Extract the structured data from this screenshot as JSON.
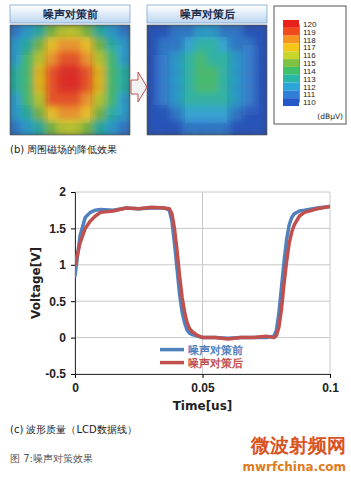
{
  "chart_data": [
    {
      "type": "heatmap",
      "panels": [
        {
          "title": "噪声对策前",
          "cells": [
            [
              111,
              112,
              113,
              115,
              116,
              116,
              115,
              113,
              112,
              111
            ],
            [
              112,
              113,
              115,
              117,
              118,
              118,
              117,
              115,
              113,
              112
            ],
            [
              112,
              114,
              116,
              118,
              119,
              119,
              118,
              116,
              114,
              112
            ],
            [
              113,
              114,
              117,
              119,
              120,
              120,
              119,
              117,
              114,
              113
            ],
            [
              113,
              114,
              117,
              119,
              120,
              120,
              119,
              117,
              114,
              113
            ],
            [
              112,
              114,
              116,
              119,
              119,
              119,
              118,
              116,
              114,
              112
            ],
            [
              112,
              113,
              115,
              117,
              118,
              118,
              117,
              115,
              113,
              112
            ],
            [
              111,
              112,
              113,
              115,
              116,
              116,
              115,
              113,
              112,
              111
            ]
          ]
        },
        {
          "title": "噪声对策后",
          "cells": [
            [
              110,
              110,
              111,
              111,
              112,
              112,
              111,
              111,
              110,
              110
            ],
            [
              110,
              111,
              111,
              112,
              113,
              113,
              112,
              111,
              111,
              110
            ],
            [
              110,
              111,
              112,
              113,
              114,
              113,
              113,
              112,
              111,
              110
            ],
            [
              110,
              111,
              112,
              113,
              114,
              114,
              113,
              112,
              111,
              110
            ],
            [
              110,
              111,
              112,
              113,
              114,
              114,
              113,
              112,
              111,
              110
            ],
            [
              110,
              111,
              112,
              113,
              113,
              113,
              113,
              112,
              111,
              110
            ],
            [
              110,
              110,
              111,
              112,
              112,
              112,
              112,
              111,
              110,
              110
            ],
            [
              110,
              110,
              110,
              111,
              111,
              111,
              111,
              110,
              110,
              110
            ]
          ]
        }
      ],
      "colorbar": {
        "range": [
          110,
          120
        ],
        "ticks": [
          120,
          119,
          118,
          117,
          116,
          115,
          114,
          113,
          112,
          111,
          110
        ],
        "label": "(dBμV)"
      },
      "caption": "(b) 周围磁场的降低效果"
    },
    {
      "type": "line",
      "x": [
        0,
        0.002,
        0.004,
        0.006,
        0.008,
        0.01,
        0.015,
        0.02,
        0.025,
        0.03,
        0.035,
        0.037,
        0.038,
        0.039,
        0.04,
        0.041,
        0.042,
        0.043,
        0.044,
        0.045,
        0.046,
        0.048,
        0.05,
        0.055,
        0.06,
        0.065,
        0.07,
        0.075,
        0.078,
        0.079,
        0.08,
        0.081,
        0.082,
        0.083,
        0.084,
        0.085,
        0.086,
        0.088,
        0.09,
        0.095,
        0.1
      ],
      "series": [
        {
          "name": "噪声对策前",
          "color": "#4f81bd",
          "values": [
            0.85,
            1.4,
            1.65,
            1.72,
            1.75,
            1.76,
            1.75,
            1.78,
            1.77,
            1.78,
            1.78,
            1.75,
            1.6,
            1.3,
            0.95,
            0.6,
            0.35,
            0.2,
            0.1,
            0.06,
            0.04,
            0.02,
            0.0,
            0.0,
            -0.01,
            0.0,
            0.0,
            0.0,
            0.02,
            0.1,
            0.35,
            0.7,
            1.05,
            1.35,
            1.55,
            1.65,
            1.7,
            1.74,
            1.75,
            1.78,
            1.8
          ]
        },
        {
          "name": "噪声对策后",
          "color": "#c0504d",
          "values": [
            1.0,
            1.3,
            1.5,
            1.6,
            1.67,
            1.72,
            1.74,
            1.78,
            1.77,
            1.79,
            1.78,
            1.77,
            1.7,
            1.5,
            1.2,
            0.85,
            0.55,
            0.35,
            0.2,
            0.12,
            0.08,
            0.03,
            0.0,
            0.0,
            -0.02,
            0.0,
            0.0,
            0.02,
            0.0,
            0.03,
            0.15,
            0.4,
            0.75,
            1.05,
            1.3,
            1.45,
            1.55,
            1.67,
            1.72,
            1.77,
            1.8
          ]
        }
      ],
      "xlim": [
        0,
        0.1
      ],
      "xticks": [
        0,
        0.05,
        0.1
      ],
      "ylim": [
        -0.5,
        2
      ],
      "yticks": [
        -0.5,
        0,
        0.5,
        1,
        1.5,
        2
      ],
      "x_label": "Time[us]",
      "y_label": "Voltage[V]",
      "grid": true,
      "legend": "lower right",
      "caption": "(c) 波形质量（LCD数据线）"
    }
  ],
  "figure_caption": "图 7:噪声对策效果",
  "watermark": {
    "title": "微波射频网",
    "url": "mwrfchina.com"
  }
}
